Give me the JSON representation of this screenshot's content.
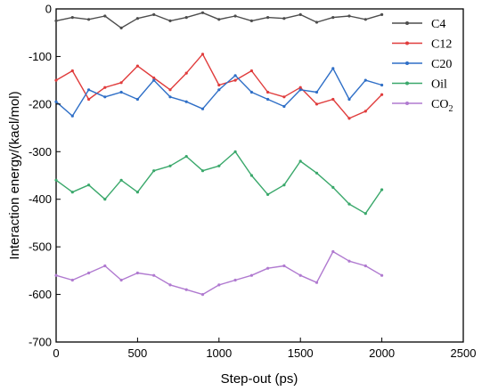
{
  "chart_data": {
    "type": "line",
    "xlabel": "Step-out (ps)",
    "ylabel": "Interaction energy/(kacl/mol)",
    "xlim": [
      0,
      2500
    ],
    "ylim": [
      -700,
      0
    ],
    "xticks": [
      "0",
      "500",
      "1000",
      "1500",
      "2000",
      "2500"
    ],
    "yticks": [
      "0",
      "-100",
      "-200",
      "-300",
      "-400",
      "-500",
      "-600",
      "-700"
    ],
    "grid": false,
    "legend_position": "top-right",
    "series": [
      {
        "name": "C4",
        "label_main": "C4",
        "label_sub": "",
        "color": "#4d4d4d",
        "x": [
          0,
          100,
          200,
          300,
          400,
          500,
          600,
          700,
          800,
          900,
          1000,
          1100,
          1200,
          1300,
          1400,
          1500,
          1600,
          1700,
          1800,
          1900,
          2000
        ],
        "y": [
          -25,
          -18,
          -22,
          -15,
          -40,
          -20,
          -12,
          -25,
          -18,
          -8,
          -22,
          -15,
          -25,
          -18,
          -20,
          -12,
          -28,
          -18,
          -15,
          -22,
          -12
        ]
      },
      {
        "name": "C12",
        "label_main": "C12",
        "label_sub": "",
        "color": "#e03c3c",
        "x": [
          0,
          100,
          200,
          300,
          400,
          500,
          600,
          700,
          800,
          900,
          1000,
          1100,
          1200,
          1300,
          1400,
          1500,
          1600,
          1700,
          1800,
          1900,
          2000
        ],
        "y": [
          -150,
          -130,
          -190,
          -165,
          -155,
          -120,
          -145,
          -170,
          -135,
          -95,
          -160,
          -150,
          -130,
          -175,
          -185,
          -165,
          -200,
          -190,
          -230,
          -215,
          -180
        ]
      },
      {
        "name": "C20",
        "label_main": "C20",
        "label_sub": "",
        "color": "#2f6fc7",
        "x": [
          0,
          100,
          200,
          300,
          400,
          500,
          600,
          700,
          800,
          900,
          1000,
          1100,
          1200,
          1300,
          1400,
          1500,
          1600,
          1700,
          1800,
          1900,
          2000
        ],
        "y": [
          -195,
          -225,
          -170,
          -185,
          -175,
          -190,
          -150,
          -185,
          -195,
          -210,
          -170,
          -140,
          -175,
          -190,
          -205,
          -170,
          -175,
          -125,
          -190,
          -150,
          -160
        ]
      },
      {
        "name": "Oil",
        "label_main": "Oil",
        "label_sub": "",
        "color": "#3aa86b",
        "x": [
          0,
          100,
          200,
          300,
          400,
          500,
          600,
          700,
          800,
          900,
          1000,
          1100,
          1200,
          1300,
          1400,
          1500,
          1600,
          1700,
          1800,
          1900,
          2000
        ],
        "y": [
          -360,
          -385,
          -370,
          -400,
          -360,
          -385,
          -340,
          -330,
          -310,
          -340,
          -330,
          -300,
          -350,
          -390,
          -370,
          -320,
          -345,
          -375,
          -410,
          -430,
          -380
        ]
      },
      {
        "name": "CO2",
        "label_main": "CO",
        "label_sub": "2",
        "color": "#b07ad0",
        "x": [
          0,
          100,
          200,
          300,
          400,
          500,
          600,
          700,
          800,
          900,
          1000,
          1100,
          1200,
          1300,
          1400,
          1500,
          1600,
          1700,
          1800,
          1900,
          2000
        ],
        "y": [
          -560,
          -570,
          -555,
          -540,
          -570,
          -555,
          -560,
          -580,
          -590,
          -600,
          -580,
          -570,
          -560,
          -545,
          -540,
          -560,
          -575,
          -510,
          -530,
          -540,
          -560
        ]
      }
    ]
  }
}
